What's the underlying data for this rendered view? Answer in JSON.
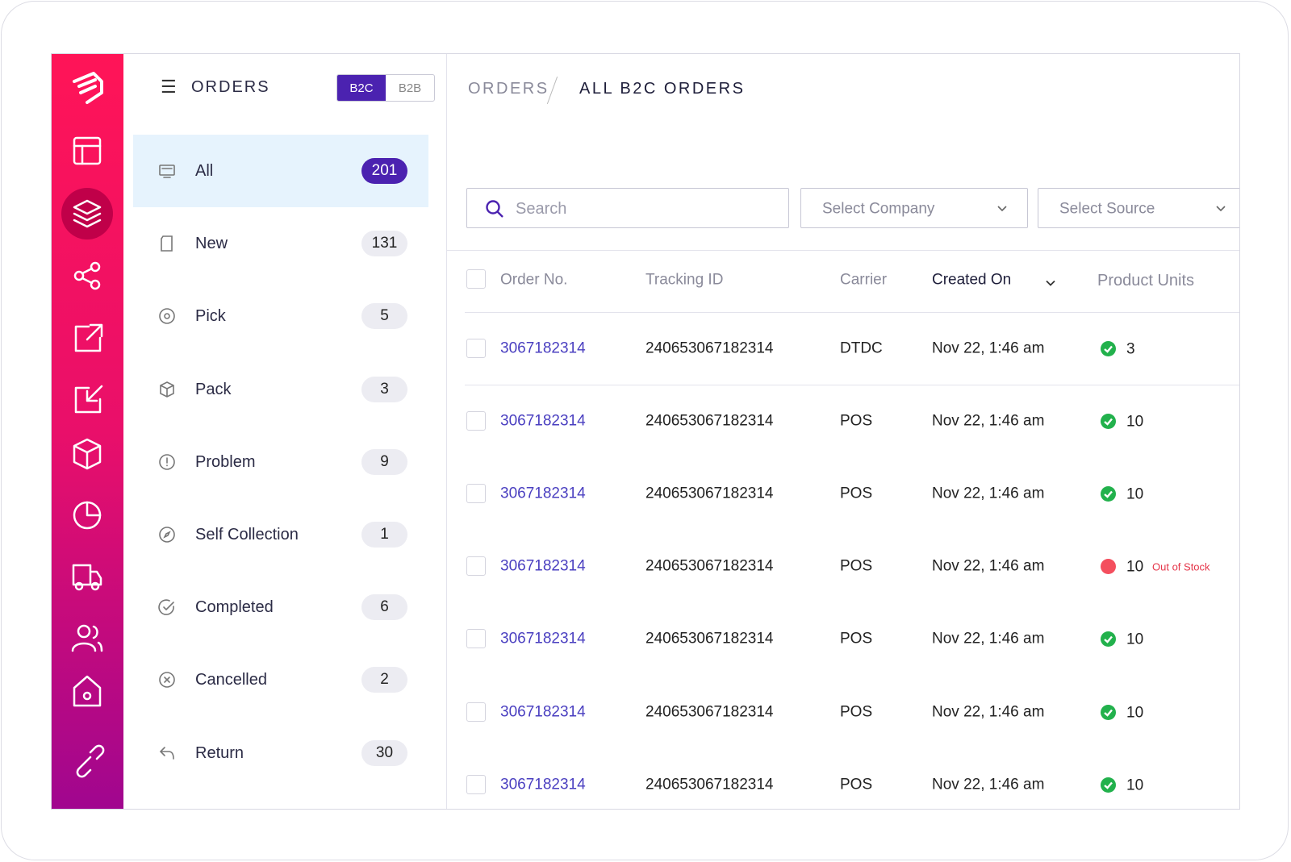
{
  "header": {
    "menu_title": "ORDERS",
    "tabs": [
      "B2C",
      "B2B"
    ]
  },
  "menu": [
    {
      "label": "All",
      "count": 201
    },
    {
      "label": "New",
      "count": 131
    },
    {
      "label": "Pick",
      "count": 5
    },
    {
      "label": "Pack",
      "count": 3
    },
    {
      "label": "Problem",
      "count": 9
    },
    {
      "label": "Self Collection",
      "count": 1
    },
    {
      "label": "Completed",
      "count": 6
    },
    {
      "label": "Cancelled",
      "count": 2
    },
    {
      "label": "Return",
      "count": 30
    }
  ],
  "breadcrumb": [
    "ORDERS",
    "ALL B2C ORDERS"
  ],
  "filters": {
    "search": "Search",
    "company": "Select Company",
    "source": "Select Source"
  },
  "table": {
    "columns": [
      "Order No.",
      "Tracking ID",
      "Carrier",
      "Created On",
      "Product Units"
    ],
    "rows": [
      {
        "order_no": "3067182314",
        "tracking_id": "240653067182314",
        "carrier": "DTDC",
        "created_on": "Nov 22, 1:46 am",
        "units": 3
      },
      {
        "order_no": "3067182314",
        "tracking_id": "240653067182314",
        "carrier": "POS",
        "created_on": "Nov 22, 1:46 am",
        "units": 10
      },
      {
        "order_no": "3067182314",
        "tracking_id": "240653067182314",
        "carrier": "POS",
        "created_on": "Nov 22, 1:46 am",
        "units": 10
      },
      {
        "order_no": "3067182314",
        "tracking_id": "240653067182314",
        "carrier": "POS",
        "created_on": "Nov 22, 1:46 am",
        "units": 10,
        "note": "Out of Stock"
      },
      {
        "order_no": "3067182314",
        "tracking_id": "240653067182314",
        "carrier": "POS",
        "created_on": "Nov 22, 1:46 am",
        "units": 10
      },
      {
        "order_no": "3067182314",
        "tracking_id": "240653067182314",
        "carrier": "POS",
        "created_on": "Nov 22, 1:46 am",
        "units": 10
      },
      {
        "order_no": "3067182314",
        "tracking_id": "240653067182314",
        "carrier": "POS",
        "created_on": "Nov 22, 1:46 am",
        "units": 10
      }
    ]
  }
}
